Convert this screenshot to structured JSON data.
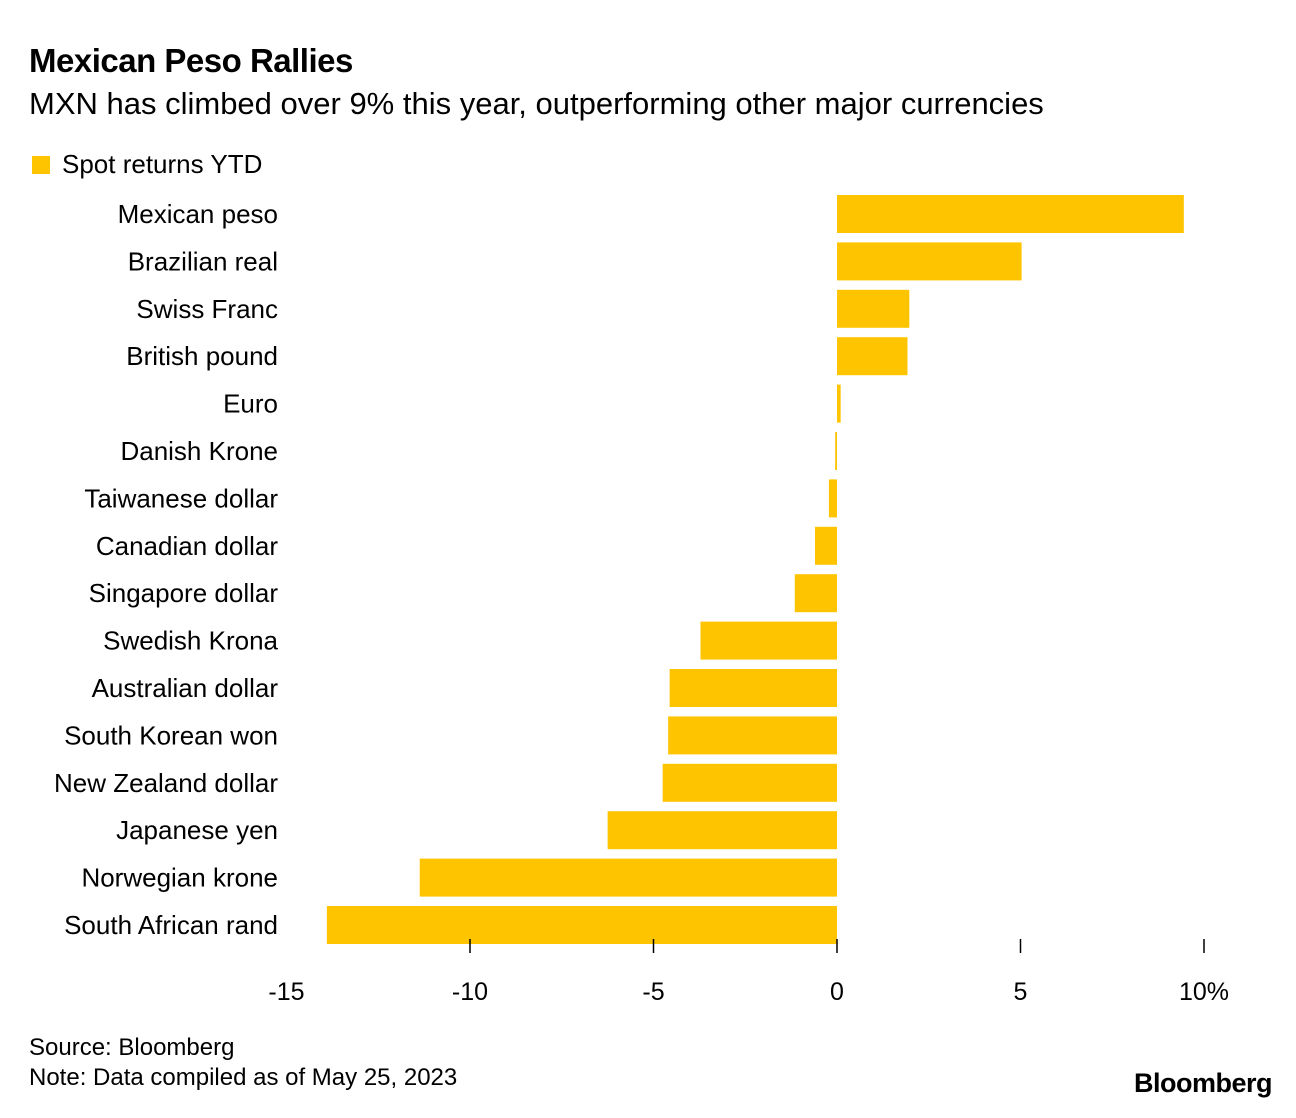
{
  "title": "Mexican Peso Rallies",
  "subtitle": "MXN has climbed over 9% this year, outperforming other major currencies",
  "source": "Source: Bloomberg",
  "note": "Note: Data compiled as of May 25, 2023",
  "logo": "Bloomberg",
  "chart_data": {
    "type": "bar",
    "orientation": "horizontal",
    "categories": [
      "Mexican peso",
      "Brazilian real",
      "Swiss Franc",
      "British pound",
      "Euro",
      "Danish Krone",
      "Taiwanese dollar",
      "Canadian dollar",
      "Singapore dollar",
      "Swedish Krona",
      "Australian dollar",
      "South Korean won",
      "New Zealand dollar",
      "Japanese yen",
      "Norwegian krone",
      "South African rand"
    ],
    "series": [
      {
        "name": "Spot returns YTD",
        "color": "#FFC400",
        "values": [
          9.45,
          5.03,
          1.97,
          1.92,
          0.1,
          -0.05,
          -0.22,
          -0.6,
          -1.15,
          -3.72,
          -4.56,
          -4.6,
          -4.75,
          -6.25,
          -11.37,
          -13.9
        ]
      }
    ],
    "xlim": [
      -15,
      10
    ],
    "xticks": [
      -15,
      -10,
      -5,
      0,
      5,
      10
    ],
    "xtick_labels": [
      "-15",
      "-10",
      "-5",
      "0",
      "5",
      "10%"
    ],
    "legend": "top-left",
    "grid": false
  }
}
